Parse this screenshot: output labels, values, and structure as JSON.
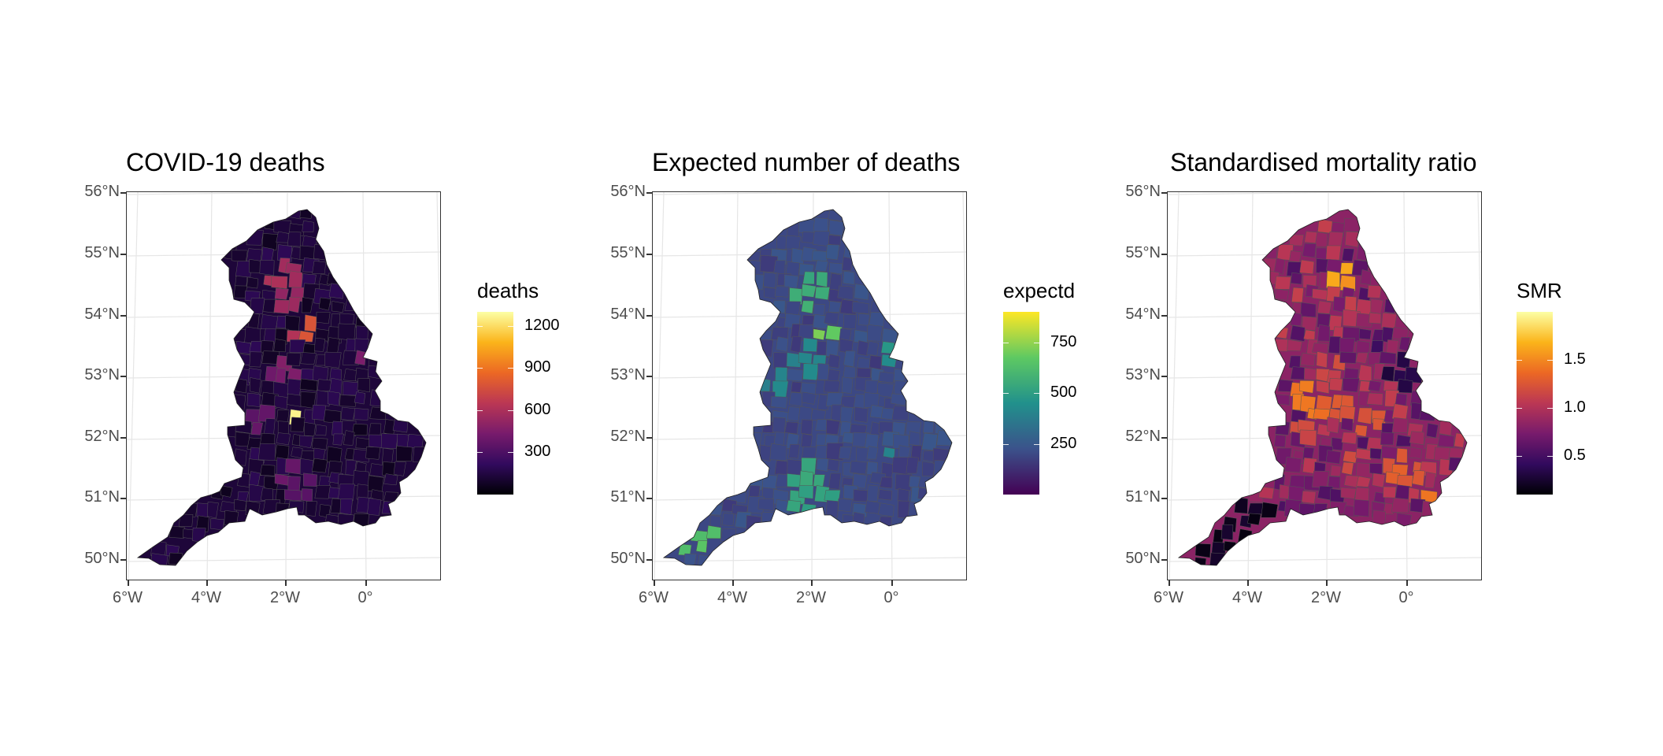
{
  "panels": [
    {
      "title": "COVID-19 deaths",
      "legend": {
        "title": "deaths",
        "labels": [
          "1200",
          "900",
          "600",
          "300"
        ],
        "label_values": [
          1200,
          900,
          600,
          300
        ],
        "range": [
          0,
          1300
        ],
        "palette": "inferno",
        "gradient": [
          "#000004",
          "#320a5e",
          "#781b6c",
          "#bb3754",
          "#ec6824",
          "#fbb41a",
          "#fcffa4"
        ]
      }
    },
    {
      "title": "Expected number of deaths",
      "legend": {
        "title": "expectd",
        "labels": [
          "750",
          "500",
          "250"
        ],
        "label_values": [
          750,
          500,
          250
        ],
        "range": [
          0,
          900
        ],
        "palette": "viridis",
        "gradient": [
          "#440154",
          "#3b528b",
          "#21918c",
          "#5ec962",
          "#fde725"
        ]
      }
    },
    {
      "title": "Standardised mortality ratio",
      "legend": {
        "title": "SMR",
        "labels": [
          "1.5",
          "1.0",
          "0.5"
        ],
        "label_values": [
          1.5,
          1.0,
          0.5
        ],
        "range": [
          0.1,
          2.0
        ],
        "palette": "inferno",
        "gradient": [
          "#000004",
          "#320a5e",
          "#781b6c",
          "#bb3754",
          "#ec6824",
          "#fbb41a",
          "#fcffa4"
        ]
      }
    }
  ],
  "axes": {
    "lat_labels": [
      "56°N",
      "55°N",
      "54°N",
      "53°N",
      "52°N",
      "51°N",
      "50°N"
    ],
    "lon_labels": [
      "6°W",
      "4°W",
      "2°W",
      "0°"
    ]
  },
  "colors": {
    "outline": "#333333",
    "graticule": "#e6e6e6",
    "district_border": "#555555"
  }
}
